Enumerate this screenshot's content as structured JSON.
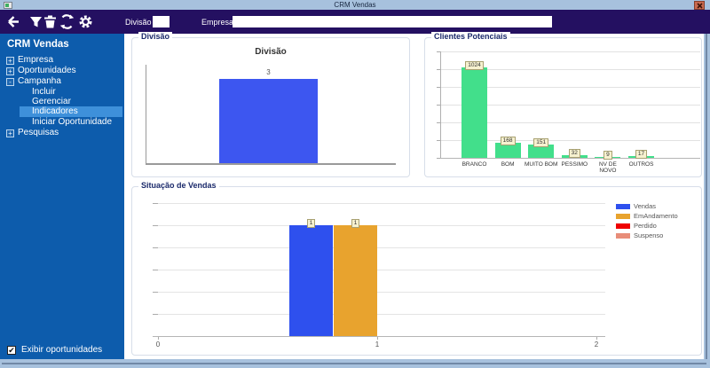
{
  "window": {
    "title": "CRM Vendas"
  },
  "titlebar": {
    "close_icon": "close"
  },
  "toolbar": {
    "icons": [
      {
        "name": "back-icon"
      },
      {
        "name": "filter-icon"
      },
      {
        "name": "delete-icon"
      },
      {
        "name": "refresh-icon"
      },
      {
        "name": "settings-icon"
      }
    ],
    "division_label": "Divisão",
    "division_value": "",
    "company_label": "Empresa",
    "company_value": ""
  },
  "sidebar": {
    "header": "CRM Vendas",
    "items": [
      {
        "label": "Empresa",
        "expand": "+",
        "indent": 0,
        "selected": false
      },
      {
        "label": "Oportunidades",
        "expand": "+",
        "indent": 0,
        "selected": false
      },
      {
        "label": "Campanha",
        "expand": "-",
        "indent": 0,
        "selected": false
      },
      {
        "label": "Incluir",
        "expand": "",
        "indent": 1,
        "selected": false
      },
      {
        "label": "Gerenciar",
        "expand": "",
        "indent": 1,
        "selected": false
      },
      {
        "label": "Indicadores",
        "expand": "",
        "indent": 1,
        "selected": true
      },
      {
        "label": "Iniciar Oportunidade",
        "expand": "",
        "indent": 1,
        "selected": false
      },
      {
        "label": "Pesquisas",
        "expand": "+",
        "indent": 0,
        "selected": false
      }
    ],
    "checkbox": {
      "label": "Exibir oportunidades",
      "checked": true,
      "check_glyph": "✔"
    }
  },
  "colors": {
    "titlebar": "#a7c1dd",
    "toolbar": "#241061",
    "sidebar": "#0d5cac",
    "sidebar_selected": "#3e90da",
    "close_button": "#c9694e",
    "blue_bar": "#3d56f0",
    "green_bar": "#42df8b",
    "orange_bar": "#e8a32e",
    "red_swatch": "#ee0000",
    "salmon_swatch": "#e88d79",
    "value_box_bg": "#f6f1cf"
  },
  "chart_data": [
    {
      "type": "bar",
      "panel_title": "Divisão",
      "chart_title": "Divisão",
      "categories": [
        ""
      ],
      "values": [
        3
      ],
      "bar_color": "#3d56f0",
      "ylim": [
        0,
        3.5
      ],
      "grid": false,
      "legend_position": "none"
    },
    {
      "type": "bar",
      "panel_title": "Clientes Potenciais",
      "categories": [
        "BRANCO",
        "BOM",
        "MUITO BOM",
        "PESSIMO",
        "NV DE\nNOVO",
        "OUTROS"
      ],
      "values": [
        1024,
        168,
        151,
        32,
        9,
        17
      ],
      "bar_color": "#42df8b",
      "ylim": [
        0,
        1200
      ],
      "grid_step": 200,
      "grid": true,
      "legend_position": "none"
    },
    {
      "type": "bar",
      "panel_title": "Situação de Vendas",
      "series": [
        {
          "name": "Vendas",
          "color": "#2e50ee",
          "value": 1
        },
        {
          "name": "EmAndamento",
          "color": "#e8a32e",
          "value": 1
        },
        {
          "name": "Perdido",
          "color": "#ee0000",
          "value": 0
        },
        {
          "name": "Suspenso",
          "color": "#e88d79",
          "value": 0
        }
      ],
      "x_ticks": [
        "0",
        "1",
        "2"
      ],
      "xlim": [
        0,
        2
      ],
      "ylim": [
        0,
        1.2
      ],
      "grid_step": 0.2,
      "grid": true,
      "legend_position": "right"
    }
  ]
}
